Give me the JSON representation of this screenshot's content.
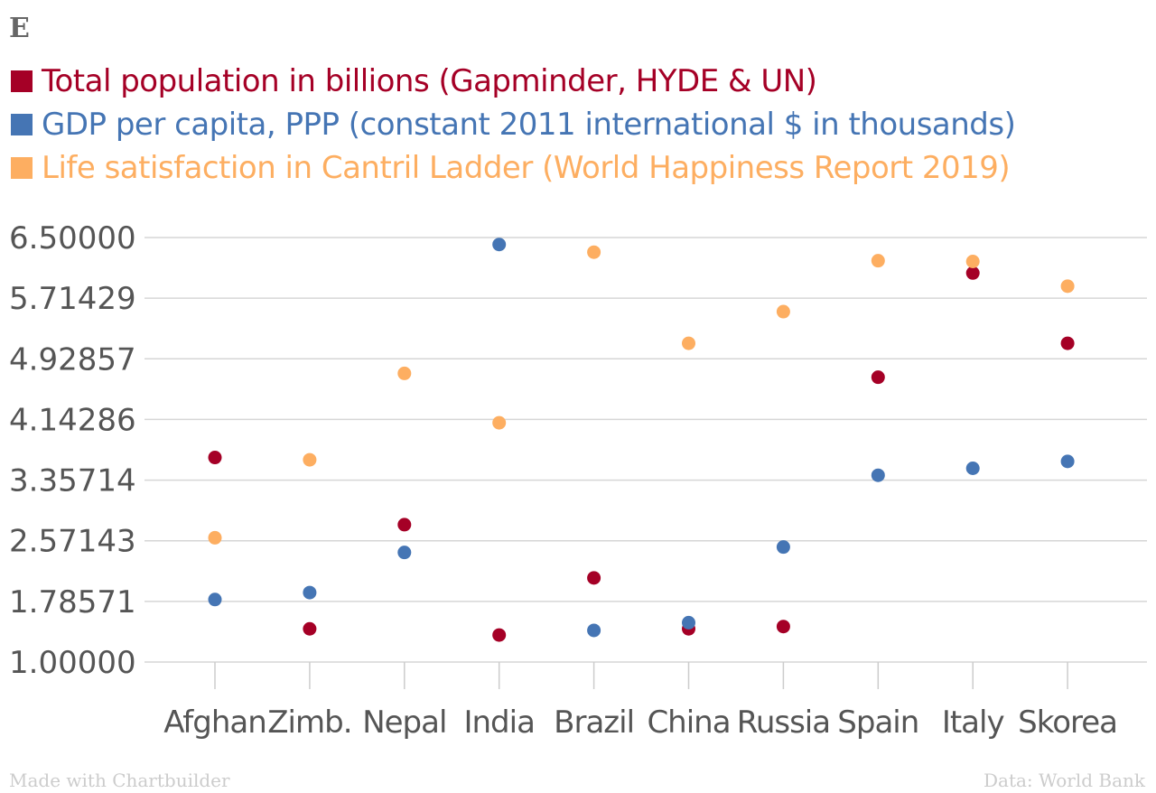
{
  "header": {
    "title": "E"
  },
  "footer": {
    "credit": "Made with Chartbuilder",
    "source": "Data: World Bank"
  },
  "chart_data": {
    "type": "scatter",
    "title": "E",
    "categories": [
      "Afghan",
      "Zimb.",
      "Nepal",
      "India",
      "Brazil",
      "China",
      "Russia",
      "Spain",
      "Italy",
      "Skorea"
    ],
    "yticks": [
      "6.50000",
      "5.71429",
      "4.92857",
      "4.14286",
      "3.35714",
      "2.57143",
      "1.78571",
      "1.00000"
    ],
    "ylim": [
      1.0,
      6.5
    ],
    "grid": true,
    "legend_position": "top-left",
    "series": [
      {
        "name": "Total population in billions (Gapminder, HYDE & UN)",
        "color": "#a50026",
        "values": [
          3.65,
          1.43,
          2.78,
          1.35,
          2.09,
          1.43,
          1.46,
          4.69,
          6.04,
          5.13
        ]
      },
      {
        "name": "GDP per capita, PPP (constant 2011 international $ in thousands)",
        "color": "#4575b4",
        "values": [
          1.81,
          1.9,
          2.42,
          6.41,
          1.41,
          1.51,
          2.49,
          3.42,
          3.51,
          3.6
        ]
      },
      {
        "name": "Life satisfaction in Cantril Ladder (World Happiness Report 2019)",
        "color": "#fdae61",
        "values": [
          2.61,
          3.62,
          4.74,
          4.1,
          6.31,
          5.13,
          5.54,
          6.2,
          6.19,
          5.87
        ]
      }
    ]
  }
}
